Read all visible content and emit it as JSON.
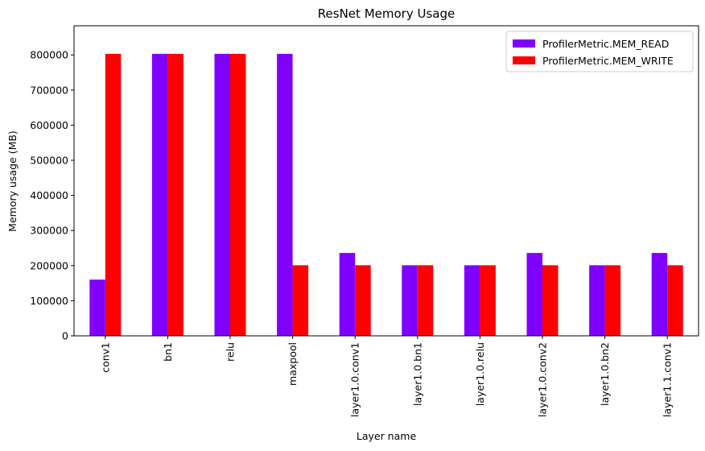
{
  "chart_data": {
    "type": "bar",
    "title": "ResNet Memory Usage",
    "xlabel": "Layer name",
    "ylabel": "Memory usage (MB)",
    "categories": [
      "conv1",
      "bn1",
      "relu",
      "maxpool",
      "layer1.0.conv1",
      "layer1.0.bn1",
      "layer1.0.relu",
      "layer1.0.conv2",
      "layer1.0.bn2",
      "layer1.1.conv1"
    ],
    "series": [
      {
        "name": "ProfilerMetric.MEM_READ",
        "color": "#8000ff",
        "values": [
          160000,
          803000,
          803000,
          803000,
          236000,
          201000,
          201000,
          236000,
          201000,
          236000
        ]
      },
      {
        "name": "ProfilerMetric.MEM_WRITE",
        "color": "#ff0000",
        "values": [
          803000,
          803000,
          803000,
          201000,
          201000,
          201000,
          201000,
          201000,
          201000,
          201000
        ]
      }
    ],
    "ylim": [
      0,
      883000
    ],
    "yticks": [
      0,
      100000,
      200000,
      300000,
      400000,
      500000,
      600000,
      700000,
      800000
    ],
    "ytick_labels": [
      "0",
      "100000",
      "200000",
      "300000",
      "400000",
      "500000",
      "600000",
      "700000",
      "800000"
    ],
    "grid": false,
    "legend_position": "top-right"
  }
}
